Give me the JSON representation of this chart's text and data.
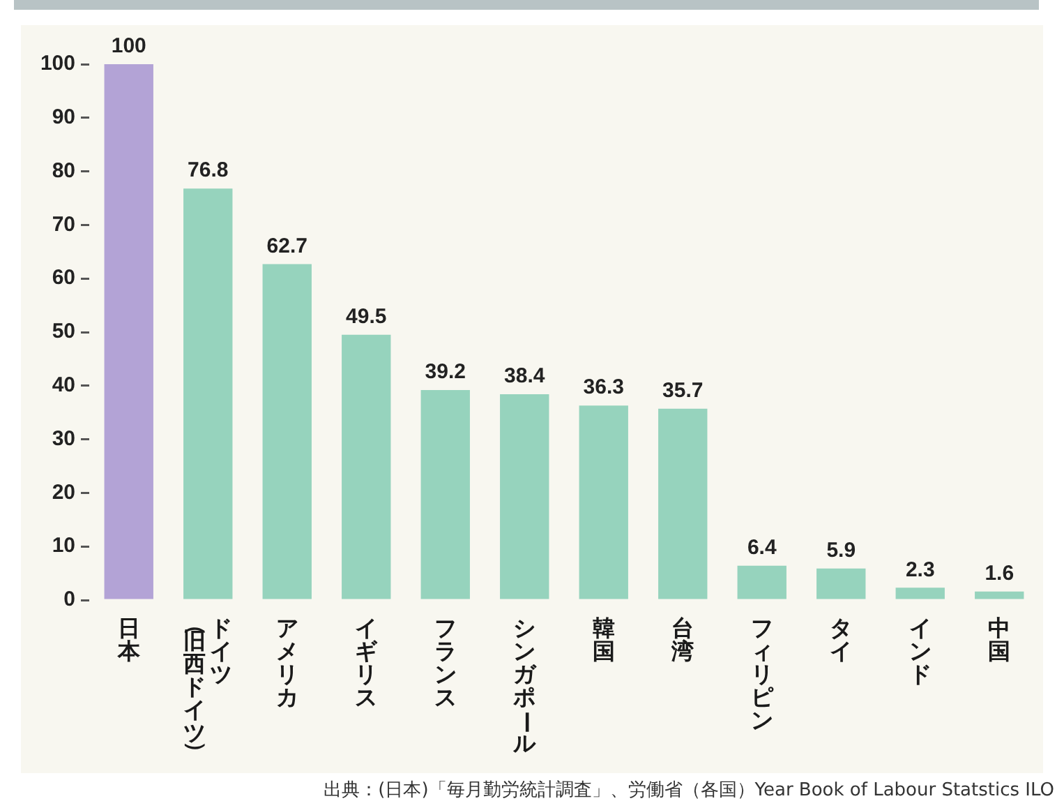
{
  "chart_data": {
    "type": "bar",
    "categories": [
      "日本",
      "ドイツ（旧西ドイツ）",
      "アメリカ",
      "イギリス",
      "フランス",
      "シンガポール",
      "韓国",
      "台湾",
      "フィリピン",
      "タイ",
      "インド",
      "中国"
    ],
    "values": [
      100,
      76.8,
      62.7,
      49.5,
      39.2,
      38.4,
      36.3,
      35.7,
      6.4,
      5.9,
      2.3,
      1.6
    ],
    "colors": [
      "#b3a3d6",
      "#96d3bd",
      "#96d3bd",
      "#96d3bd",
      "#96d3bd",
      "#96d3bd",
      "#96d3bd",
      "#96d3bd",
      "#96d3bd",
      "#96d3bd",
      "#96d3bd",
      "#96d3bd"
    ],
    "ylim": [
      0,
      100
    ],
    "yticks": [
      0,
      10,
      20,
      30,
      40,
      50,
      60,
      70,
      80,
      90,
      100
    ],
    "data_labels": true,
    "annotations": [
      "出典：(日本)「毎月勤労統計調査」、労働省（各国）Year Book of Labour Statstics ILO"
    ]
  }
}
